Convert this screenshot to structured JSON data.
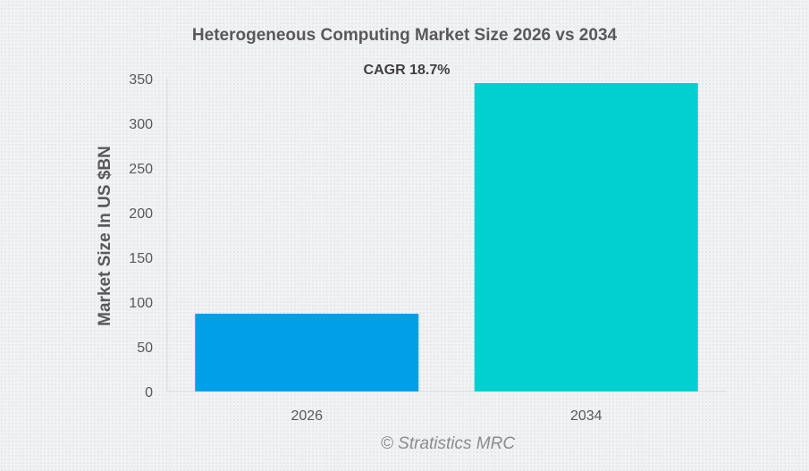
{
  "chart_data": {
    "type": "bar",
    "title": "Heterogeneous Computing Market Size 2026 vs 2034",
    "annotation": "CAGR 18.7%",
    "xlabel": "",
    "ylabel": "Market Size In US $BN",
    "categories": [
      "2026",
      "2034"
    ],
    "values": [
      87,
      345
    ],
    "colors": [
      "#00a0e9",
      "#00d0d0"
    ],
    "ylim": [
      0,
      350
    ],
    "yticks": [
      0,
      50,
      100,
      150,
      200,
      250,
      300,
      350
    ],
    "grid": false,
    "legend": "none"
  },
  "watermark": "© Stratistics MRC"
}
